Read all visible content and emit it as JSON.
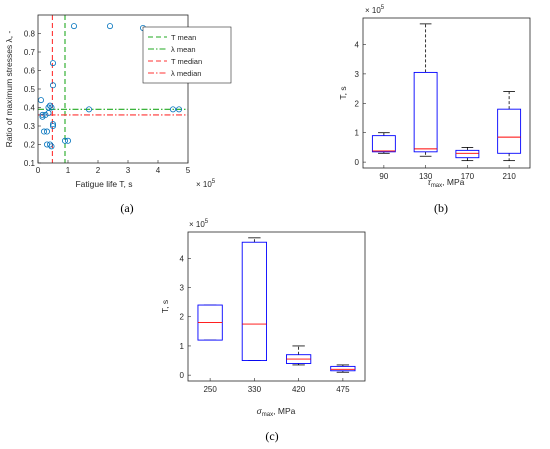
{
  "colors": {
    "axis": "#262626",
    "marker": "#0072BD",
    "box": "#0000FF",
    "median": "#FF0000",
    "whisker": "#000000",
    "t_mean": "#22AA22",
    "lambda_mean": "#22AA22",
    "t_median": "#FF3333",
    "lambda_median": "#FF3333"
  },
  "panel_labels": [
    "(a)",
    "(b)",
    "(c)"
  ],
  "chart_data": [
    {
      "id": "a",
      "type": "scatter",
      "xlabel": "Fatigue life T, s",
      "ylabel": "Ratio of maximum stresses λ, -",
      "x_exponent": "× 10",
      "x_exponent_power": "5",
      "xlim": [
        0,
        5
      ],
      "ylim": [
        0.1,
        0.9
      ],
      "xticks": [
        0,
        1,
        2,
        3,
        4,
        5
      ],
      "yticks": [
        0.1,
        0.2,
        0.3,
        0.4,
        0.5,
        0.6,
        0.7,
        0.8
      ],
      "legend_position": "top-right",
      "points": {
        "x": [
          0.1,
          0.2,
          0.3,
          0.35,
          0.4,
          0.45,
          0.5,
          0.5,
          0.5,
          0.4,
          0.45,
          0.3,
          0.35,
          0.15,
          0.15,
          0.25,
          0.9,
          1.0,
          1.7,
          0.5,
          1.2,
          2.4,
          3.5,
          4.5,
          4.7
        ],
        "y": [
          0.44,
          0.27,
          0.27,
          0.4,
          0.41,
          0.4,
          0.31,
          0.3,
          0.52,
          0.2,
          0.19,
          0.2,
          0.37,
          0.36,
          0.35,
          0.36,
          0.22,
          0.22,
          0.39,
          0.64,
          0.84,
          0.84,
          0.83,
          0.39,
          0.39
        ]
      },
      "series": [
        {
          "name": "T mean",
          "style": "dashed",
          "orientation": "vertical",
          "value": 0.9,
          "color": "#22AA22"
        },
        {
          "name": "λ mean",
          "style": "dashdot",
          "orientation": "horizontal",
          "value": 0.39,
          "color": "#22AA22"
        },
        {
          "name": "T median",
          "style": "dashed",
          "orientation": "vertical",
          "value": 0.48,
          "color": "#FF3333"
        },
        {
          "name": "λ median",
          "style": "dashdot",
          "orientation": "horizontal",
          "value": 0.36,
          "color": "#FF3333"
        }
      ]
    },
    {
      "id": "b",
      "type": "box",
      "xlabel": "τ",
      "xlabel_sub": "max",
      "xlabel_rest": ", MPa",
      "ylabel": "T, s",
      "y_exponent": "× 10",
      "y_exponent_power": "5",
      "ylim": [
        -0.2,
        4.9
      ],
      "yticks": [
        0,
        1,
        2,
        3,
        4
      ],
      "categories": [
        "90",
        "130",
        "170",
        "210"
      ],
      "boxes": [
        {
          "min": 0.3,
          "q1": 0.35,
          "median": 0.38,
          "q3": 0.9,
          "max": 1.0
        },
        {
          "min": 0.2,
          "q1": 0.35,
          "median": 0.45,
          "q3": 3.05,
          "max": 4.7
        },
        {
          "min": 0.05,
          "q1": 0.15,
          "median": 0.3,
          "q3": 0.4,
          "max": 0.5
        },
        {
          "min": 0.05,
          "q1": 0.3,
          "median": 0.85,
          "q3": 1.8,
          "max": 2.4
        }
      ]
    },
    {
      "id": "c",
      "type": "box",
      "xlabel": "σ",
      "xlabel_sub": "max",
      "xlabel_rest": ", MPa",
      "ylabel": "T, s",
      "y_exponent": "× 10",
      "y_exponent_power": "5",
      "ylim": [
        -0.2,
        4.9
      ],
      "yticks": [
        0,
        1,
        2,
        3,
        4
      ],
      "categories": [
        "250",
        "330",
        "420",
        "475"
      ],
      "boxes": [
        {
          "min": 1.2,
          "q1": 1.2,
          "median": 1.8,
          "q3": 2.4,
          "max": 2.4
        },
        {
          "min": 0.5,
          "q1": 0.5,
          "median": 1.75,
          "q3": 4.55,
          "max": 4.7
        },
        {
          "min": 0.35,
          "q1": 0.4,
          "median": 0.55,
          "q3": 0.7,
          "max": 1.0
        },
        {
          "min": 0.1,
          "q1": 0.15,
          "median": 0.2,
          "q3": 0.3,
          "max": 0.35
        }
      ]
    }
  ]
}
